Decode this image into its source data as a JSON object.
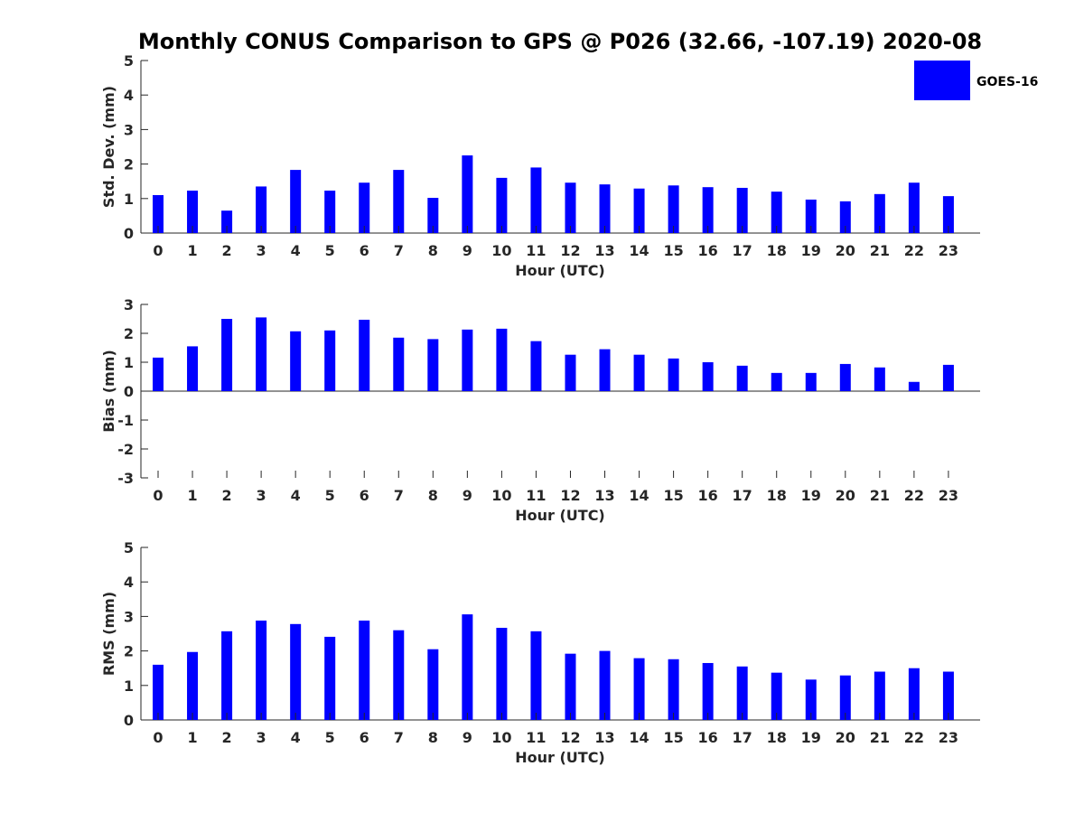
{
  "title": "Monthly CONUS Comparison to GPS @ P026 (32.66, -107.19) 2020-08",
  "legend": {
    "label": "GOES-16",
    "color": "#0000ff",
    "placement": "top-right"
  },
  "chart_data": [
    {
      "type": "bar",
      "title": "",
      "xlabel": "Hour (UTC)",
      "ylabel": "Std. Dev. (mm)",
      "ylim": [
        0,
        5
      ],
      "yticks": [
        0,
        1,
        2,
        3,
        4,
        5
      ],
      "grid": false,
      "categories": [
        "0",
        "1",
        "2",
        "3",
        "4",
        "5",
        "6",
        "7",
        "8",
        "9",
        "10",
        "11",
        "12",
        "13",
        "14",
        "15",
        "16",
        "17",
        "18",
        "19",
        "20",
        "21",
        "22",
        "23"
      ],
      "series": [
        {
          "name": "GOES-16",
          "values": [
            1.1,
            1.23,
            0.65,
            1.35,
            1.83,
            1.23,
            1.46,
            1.83,
            1.02,
            2.25,
            1.6,
            1.9,
            1.46,
            1.41,
            1.29,
            1.38,
            1.33,
            1.31,
            1.2,
            0.97,
            0.92,
            1.13,
            1.46,
            1.07
          ]
        }
      ]
    },
    {
      "type": "bar",
      "title": "",
      "xlabel": "Hour (UTC)",
      "ylabel": "Bias (mm)",
      "ylim": [
        -3,
        3
      ],
      "yticks": [
        -3,
        -2,
        -1,
        0,
        1,
        2,
        3
      ],
      "grid": false,
      "categories": [
        "0",
        "1",
        "2",
        "3",
        "4",
        "5",
        "6",
        "7",
        "8",
        "9",
        "10",
        "11",
        "12",
        "13",
        "14",
        "15",
        "16",
        "17",
        "18",
        "19",
        "20",
        "21",
        "22",
        "23"
      ],
      "series": [
        {
          "name": "GOES-16",
          "values": [
            1.16,
            1.55,
            2.5,
            2.55,
            2.07,
            2.1,
            2.47,
            1.85,
            1.8,
            2.13,
            2.16,
            1.73,
            1.26,
            1.45,
            1.26,
            1.13,
            1.0,
            0.88,
            0.63,
            0.63,
            0.94,
            0.82,
            0.32,
            0.91
          ]
        }
      ]
    },
    {
      "type": "bar",
      "title": "",
      "xlabel": "Hour (UTC)",
      "ylabel": "RMS (mm)",
      "ylim": [
        0,
        5
      ],
      "yticks": [
        0,
        1,
        2,
        3,
        4,
        5
      ],
      "grid": false,
      "categories": [
        "0",
        "1",
        "2",
        "3",
        "4",
        "5",
        "6",
        "7",
        "8",
        "9",
        "10",
        "11",
        "12",
        "13",
        "14",
        "15",
        "16",
        "17",
        "18",
        "19",
        "20",
        "21",
        "22",
        "23"
      ],
      "series": [
        {
          "name": "GOES-16",
          "values": [
            1.6,
            1.97,
            2.57,
            2.88,
            2.78,
            2.41,
            2.88,
            2.6,
            2.05,
            3.06,
            2.67,
            2.57,
            1.92,
            2.0,
            1.79,
            1.76,
            1.65,
            1.55,
            1.37,
            1.17,
            1.29,
            1.4,
            1.5,
            1.4
          ]
        }
      ]
    }
  ]
}
